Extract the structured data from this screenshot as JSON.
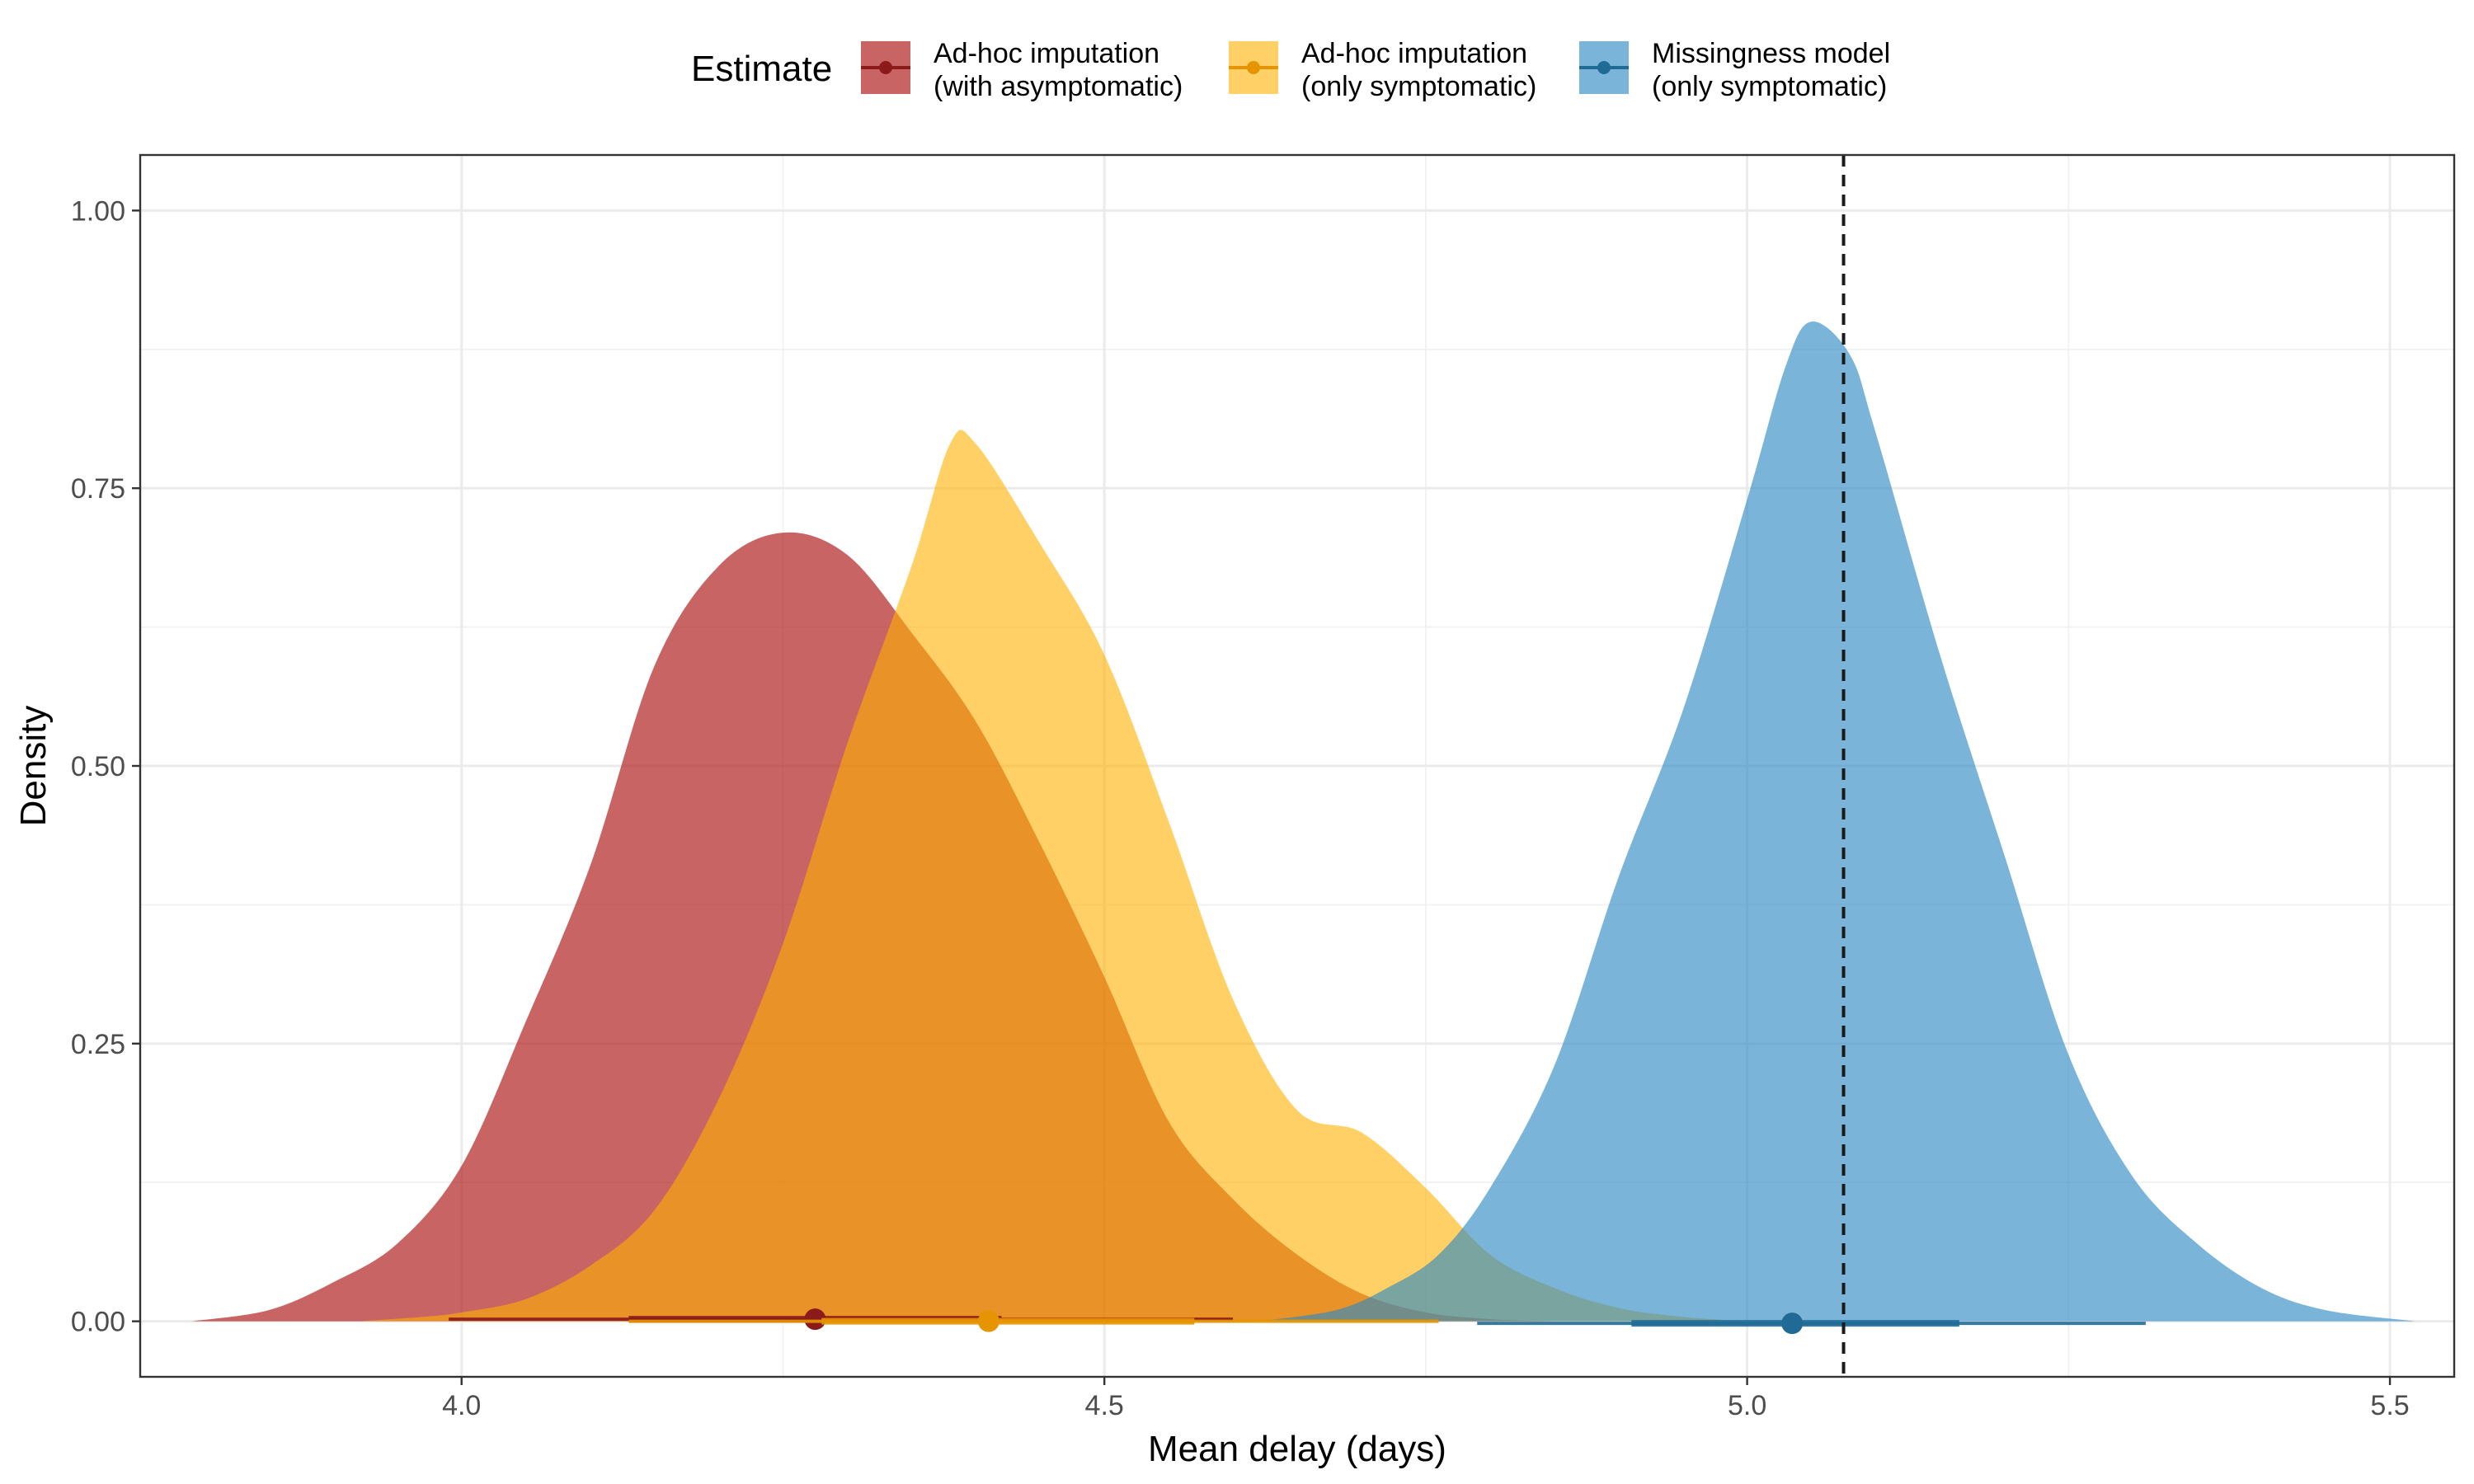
{
  "chart_data": {
    "type": "area",
    "xlabel": "Mean delay (days)",
    "ylabel": "Density",
    "xlim": [
      3.75,
      5.55
    ],
    "ylim": [
      -0.05,
      1.05
    ],
    "x_ticks": [
      4.0,
      4.5,
      5.0,
      5.5
    ],
    "x_tick_labels": [
      "4.0",
      "4.5",
      "5.0",
      "5.5"
    ],
    "y_ticks": [
      0.0,
      0.25,
      0.5,
      0.75,
      1.0
    ],
    "y_tick_labels": [
      "0.00",
      "0.25",
      "0.50",
      "0.75",
      "1.00"
    ],
    "grid": true,
    "legend": {
      "title": "Estimate",
      "position": "top"
    },
    "reference_line": {
      "x": 5.075,
      "style": "dashed"
    },
    "series": [
      {
        "name": "Ad-hoc imputation\n(with asymptomatic)",
        "color": "#b22222",
        "line_color": "#8b1a1a",
        "fill_opacity": 0.7,
        "density": [
          [
            3.79,
            0.0
          ],
          [
            3.85,
            0.01
          ],
          [
            3.9,
            0.035
          ],
          [
            3.95,
            0.07
          ],
          [
            4.0,
            0.14
          ],
          [
            4.05,
            0.27
          ],
          [
            4.1,
            0.41
          ],
          [
            4.15,
            0.59
          ],
          [
            4.2,
            0.68
          ],
          [
            4.25,
            0.71
          ],
          [
            4.3,
            0.69
          ],
          [
            4.35,
            0.62
          ],
          [
            4.4,
            0.54
          ],
          [
            4.45,
            0.43
          ],
          [
            4.5,
            0.31
          ],
          [
            4.55,
            0.18
          ],
          [
            4.6,
            0.11
          ],
          [
            4.65,
            0.06
          ],
          [
            4.7,
            0.025
          ],
          [
            4.75,
            0.008
          ],
          [
            4.8,
            0.002
          ],
          [
            4.85,
            0.0
          ]
        ],
        "point": 4.275,
        "interval_inner": [
          4.13,
          4.42
        ],
        "interval_outer": [
          3.99,
          4.6
        ]
      },
      {
        "name": "Ad-hoc imputation\n(only symptomatic)",
        "color": "#ffb000",
        "line_color": "#e69500",
        "fill_opacity": 0.6,
        "density": [
          [
            3.92,
            0.0
          ],
          [
            3.97,
            0.004
          ],
          [
            4.0,
            0.008
          ],
          [
            4.05,
            0.02
          ],
          [
            4.1,
            0.05
          ],
          [
            4.15,
            0.1
          ],
          [
            4.2,
            0.2
          ],
          [
            4.25,
            0.34
          ],
          [
            4.3,
            0.52
          ],
          [
            4.35,
            0.68
          ],
          [
            4.38,
            0.79
          ],
          [
            4.4,
            0.79
          ],
          [
            4.45,
            0.7
          ],
          [
            4.5,
            0.6
          ],
          [
            4.55,
            0.45
          ],
          [
            4.6,
            0.29
          ],
          [
            4.65,
            0.19
          ],
          [
            4.7,
            0.17
          ],
          [
            4.75,
            0.12
          ],
          [
            4.8,
            0.06
          ],
          [
            4.85,
            0.03
          ],
          [
            4.9,
            0.012
          ],
          [
            4.95,
            0.004
          ],
          [
            5.0,
            0.0
          ]
        ],
        "point": 4.41,
        "interval_inner": [
          4.28,
          4.57
        ],
        "interval_outer": [
          4.13,
          4.76
        ]
      },
      {
        "name": "Missingness model\n(only symptomatic)",
        "color": "#2c8ac3",
        "line_color": "#1f6b96",
        "fill_opacity": 0.63,
        "density": [
          [
            4.62,
            0.0
          ],
          [
            4.68,
            0.01
          ],
          [
            4.72,
            0.03
          ],
          [
            4.76,
            0.06
          ],
          [
            4.8,
            0.12
          ],
          [
            4.85,
            0.23
          ],
          [
            4.9,
            0.4
          ],
          [
            4.95,
            0.55
          ],
          [
            5.0,
            0.74
          ],
          [
            5.03,
            0.86
          ],
          [
            5.05,
            0.9
          ],
          [
            5.08,
            0.87
          ],
          [
            5.1,
            0.8
          ],
          [
            5.15,
            0.6
          ],
          [
            5.2,
            0.42
          ],
          [
            5.25,
            0.24
          ],
          [
            5.3,
            0.13
          ],
          [
            5.35,
            0.07
          ],
          [
            5.4,
            0.03
          ],
          [
            5.45,
            0.01
          ],
          [
            5.52,
            0.0
          ]
        ],
        "point": 5.035,
        "interval_inner": [
          4.91,
          5.165
        ],
        "interval_outer": [
          4.79,
          5.31
        ]
      }
    ]
  }
}
